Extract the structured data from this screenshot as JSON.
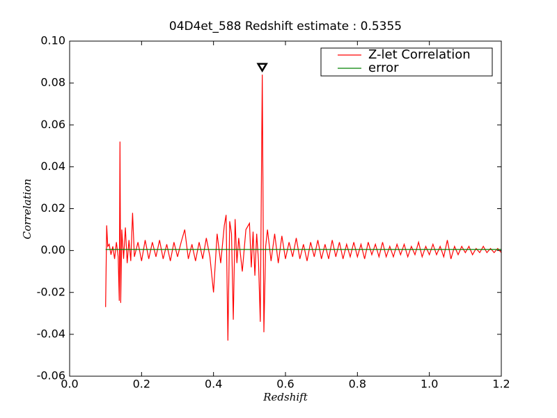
{
  "chart_data": {
    "type": "line",
    "title": "04D4et_588 Redshift estimate : 0.5355",
    "x_label": "Redshift",
    "y_label": "Correlation",
    "xlim": [
      0,
      1.2
    ],
    "ylim": [
      -0.06,
      0.1
    ],
    "xticks": [
      {
        "value": 0,
        "label": "0.0"
      },
      0.2,
      0.4,
      0.6,
      0.8,
      {
        "value": 1,
        "label": "1.0"
      },
      1.2
    ],
    "yticks": [
      -0.06,
      -0.04,
      -0.02,
      {
        "value": 0,
        "label": "0.00"
      },
      0.02,
      0.04,
      0.06,
      0.08,
      {
        "value": 0.1,
        "label": "0.10"
      }
    ],
    "legend": "upper right",
    "series": [
      {
        "name": "Z-let Correlation",
        "color": "#ff0000",
        "x": [
          0.1,
          0.103,
          0.106,
          0.11,
          0.115,
          0.12,
          0.125,
          0.13,
          0.135,
          0.138,
          0.14,
          0.142,
          0.145,
          0.15,
          0.155,
          0.16,
          0.165,
          0.17,
          0.175,
          0.18,
          0.19,
          0.2,
          0.21,
          0.22,
          0.23,
          0.24,
          0.25,
          0.26,
          0.27,
          0.28,
          0.29,
          0.3,
          0.31,
          0.32,
          0.33,
          0.34,
          0.35,
          0.36,
          0.37,
          0.38,
          0.39,
          0.4,
          0.41,
          0.42,
          0.43,
          0.435,
          0.44,
          0.445,
          0.45,
          0.455,
          0.46,
          0.465,
          0.47,
          0.48,
          0.49,
          0.5,
          0.505,
          0.51,
          0.515,
          0.52,
          0.525,
          0.53,
          0.5355,
          0.54,
          0.545,
          0.55,
          0.56,
          0.57,
          0.58,
          0.59,
          0.6,
          0.61,
          0.62,
          0.63,
          0.64,
          0.65,
          0.66,
          0.67,
          0.68,
          0.69,
          0.7,
          0.71,
          0.72,
          0.73,
          0.74,
          0.75,
          0.76,
          0.77,
          0.78,
          0.79,
          0.8,
          0.81,
          0.82,
          0.83,
          0.84,
          0.85,
          0.86,
          0.87,
          0.88,
          0.89,
          0.9,
          0.91,
          0.92,
          0.93,
          0.94,
          0.95,
          0.96,
          0.97,
          0.98,
          0.99,
          1.0,
          1.01,
          1.02,
          1.03,
          1.04,
          1.05,
          1.06,
          1.07,
          1.08,
          1.09,
          1.1,
          1.11,
          1.12,
          1.13,
          1.14,
          1.15,
          1.16,
          1.17,
          1.18,
          1.19,
          1.2
        ],
        "values": [
          -0.027,
          0.012,
          0.002,
          0.003,
          -0.002,
          0.002,
          -0.004,
          0.004,
          -0.003,
          -0.024,
          0.052,
          -0.025,
          0.01,
          -0.004,
          0.011,
          -0.006,
          0.005,
          -0.005,
          0.018,
          -0.003,
          0.004,
          -0.005,
          0.005,
          -0.004,
          0.004,
          -0.003,
          0.005,
          -0.004,
          0.003,
          -0.005,
          0.004,
          -0.003,
          0.004,
          0.01,
          -0.004,
          0.003,
          -0.005,
          0.004,
          -0.004,
          0.006,
          -0.003,
          -0.02,
          0.008,
          -0.006,
          0.012,
          0.017,
          -0.043,
          0.014,
          0.008,
          -0.033,
          0.015,
          -0.006,
          0.006,
          -0.01,
          0.01,
          0.013,
          -0.008,
          0.009,
          -0.012,
          0.008,
          -0.005,
          -0.034,
          0.084,
          -0.039,
          0.002,
          0.01,
          -0.005,
          0.008,
          -0.006,
          0.007,
          -0.004,
          0.004,
          -0.003,
          0.006,
          -0.004,
          0.003,
          -0.005,
          0.004,
          -0.003,
          0.005,
          -0.004,
          0.003,
          -0.004,
          0.005,
          -0.003,
          0.004,
          -0.004,
          0.003,
          -0.003,
          0.004,
          -0.003,
          0.003,
          -0.004,
          0.004,
          -0.002,
          0.003,
          -0.003,
          0.004,
          -0.003,
          0.002,
          -0.003,
          0.003,
          -0.002,
          0.003,
          -0.003,
          0.002,
          -0.002,
          0.004,
          -0.003,
          0.002,
          -0.002,
          0.003,
          -0.002,
          0.002,
          -0.003,
          0.005,
          -0.004,
          0.002,
          -0.002,
          0.002,
          -0.001,
          0.002,
          -0.002,
          0.001,
          -0.001,
          0.002,
          -0.001,
          0.001,
          -0.001,
          0.001,
          -0.001
        ]
      },
      {
        "name": "error",
        "color": "#008000",
        "x": [
          0.1,
          1.2
        ],
        "values": [
          0.0005,
          0.0005
        ]
      }
    ],
    "peak_marker": {
      "x": 0.5355,
      "y": 0.0875
    }
  }
}
